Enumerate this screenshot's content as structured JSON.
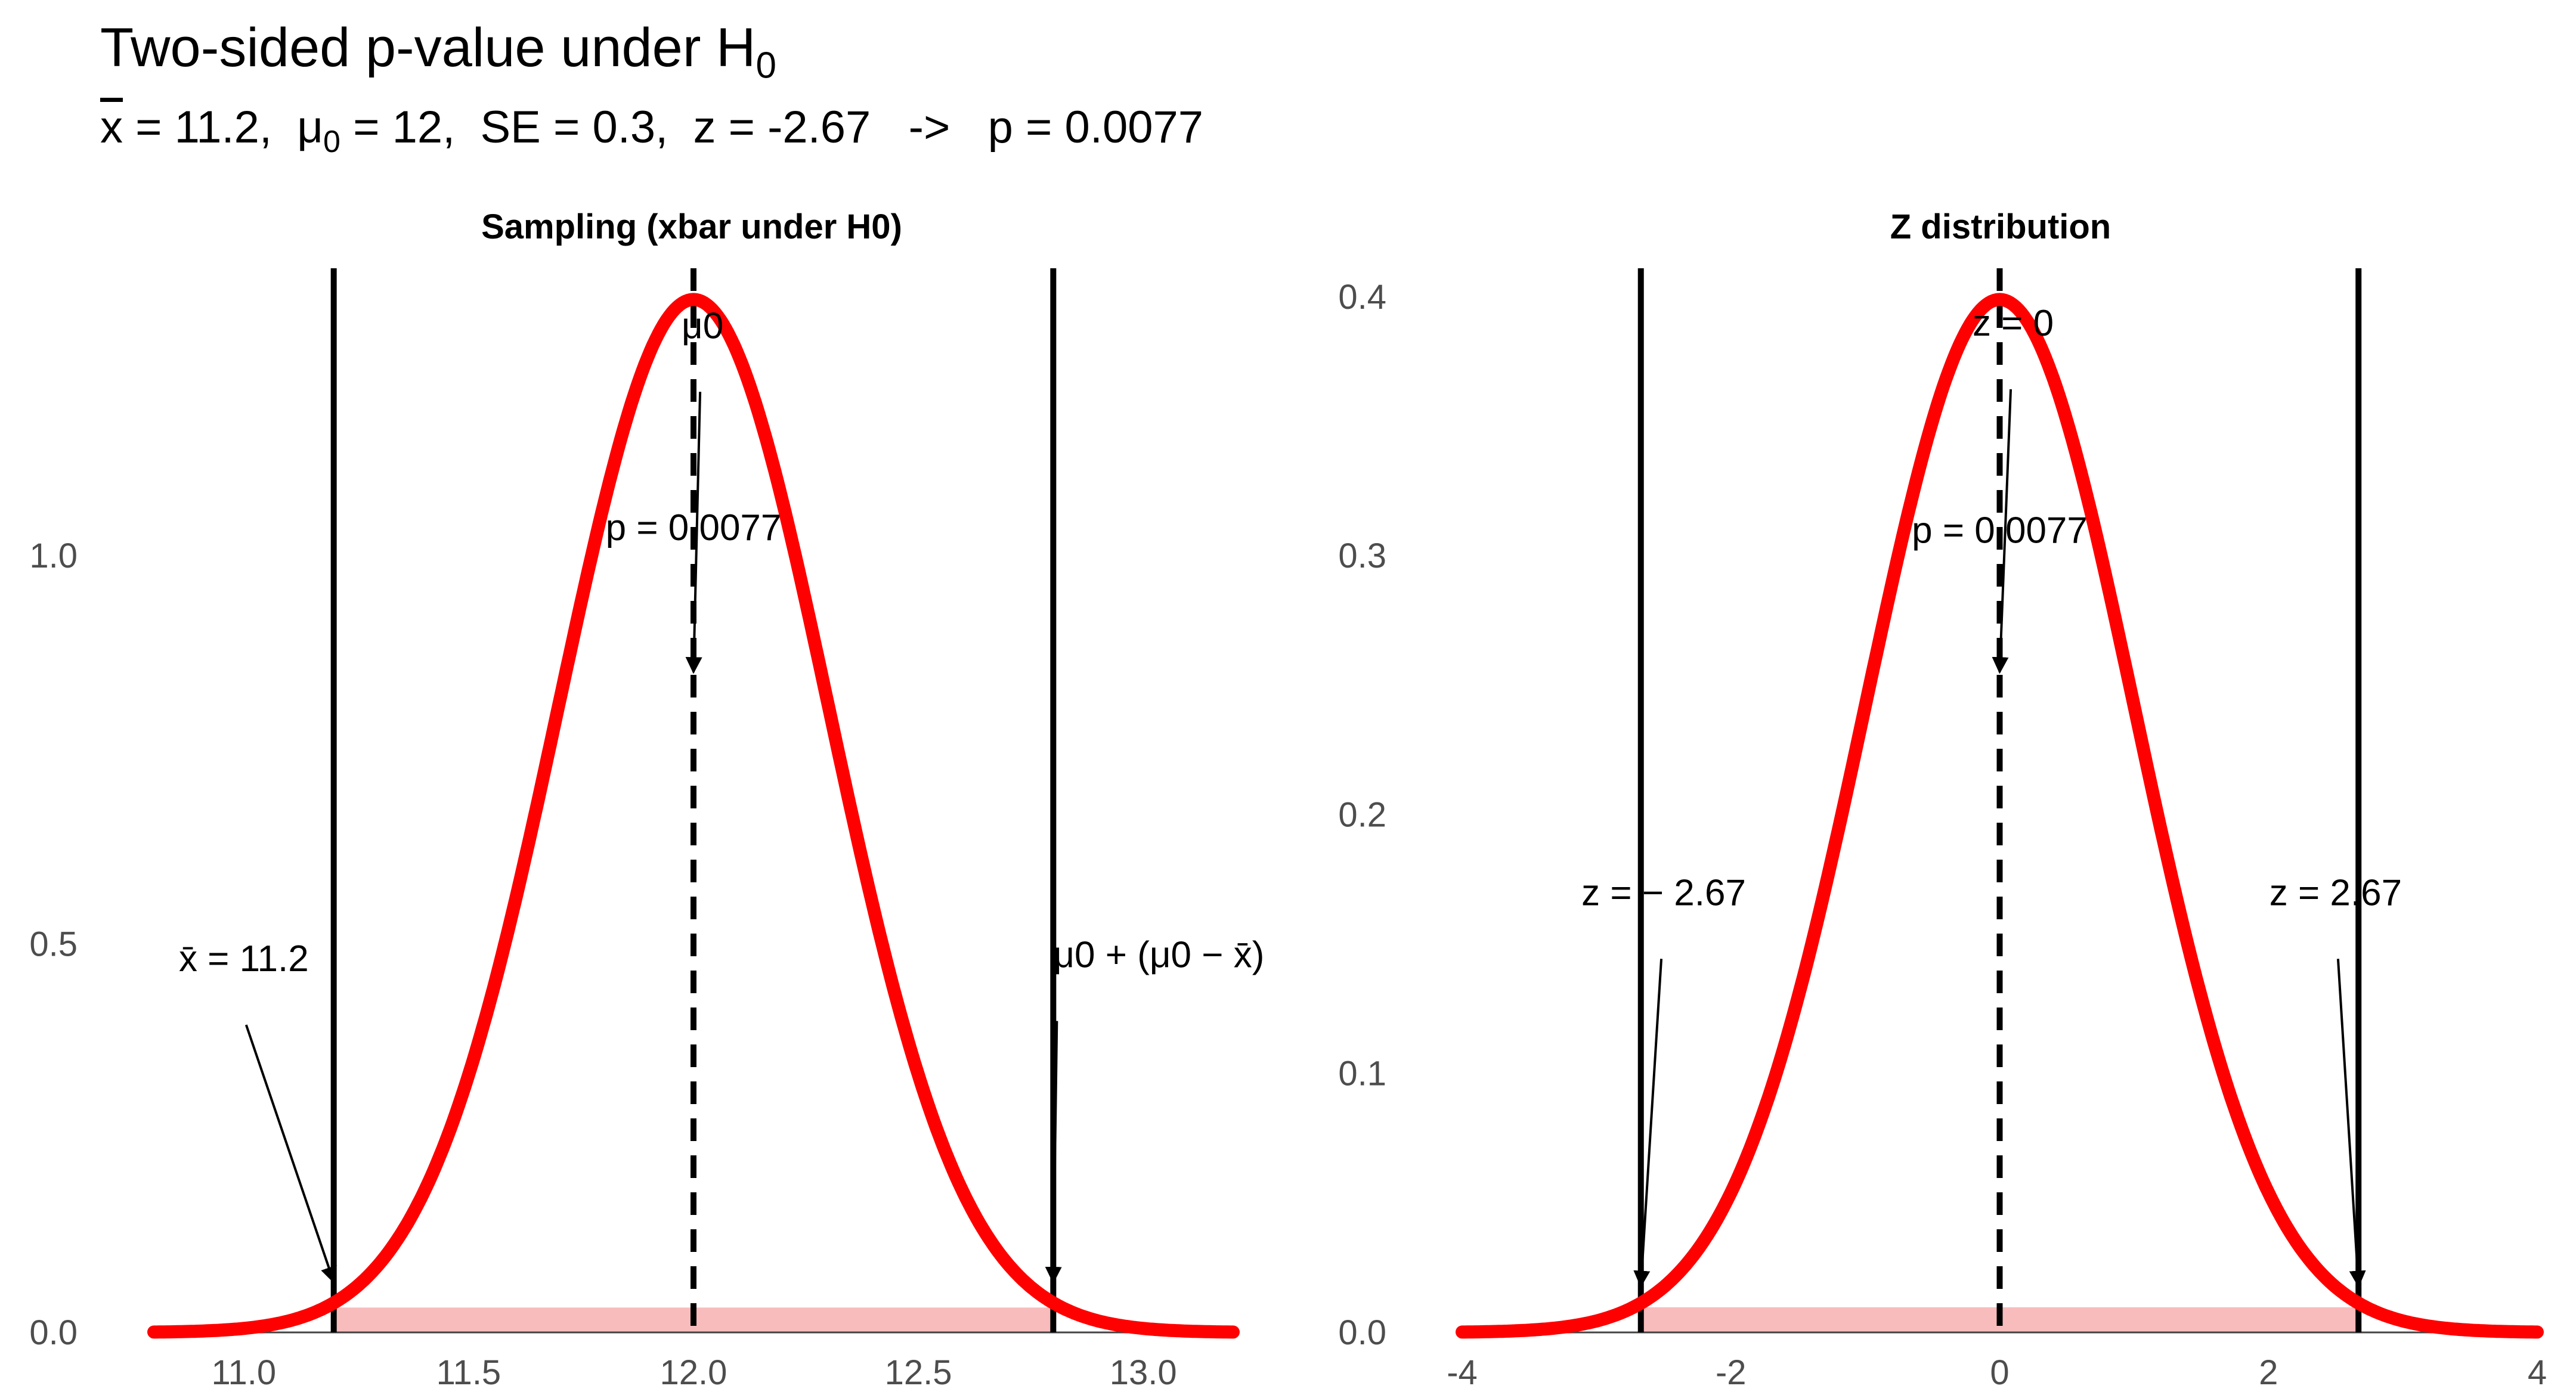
{
  "title": {
    "text": "Two-sided p-value under H",
    "sub": "0"
  },
  "subtitle": {
    "xbar_sym": "x",
    "xbar_val": " = 11.2,  ",
    "mu_sym": "μ",
    "mu_sub": "0",
    "rest": " = 12,  SE = 0.3,  z = -2.67   ->   p = 0.0077"
  },
  "colors": {
    "curve": "#ff0000",
    "shade": "#f8bcbc",
    "line": "#000000",
    "tick": "#4d4d4d"
  },
  "chart_data": [
    {
      "type": "line",
      "title": "Sampling (xbar under H0)",
      "distribution": "normal",
      "mean": 12,
      "sd": 0.3,
      "xlim": [
        10.8,
        13.2
      ],
      "ylim": [
        0,
        1.37
      ],
      "xticks": [
        "11.0",
        "11.5",
        "12.0",
        "12.5",
        "13.0"
      ],
      "xtick_values": [
        11.0,
        11.5,
        12.0,
        12.5,
        13.0
      ],
      "yticks": [
        "0.0",
        "0.5",
        "1.0"
      ],
      "ytick_values": [
        0.0,
        0.5,
        1.0
      ],
      "shaded_range": [
        11.2,
        12.8
      ],
      "shade_height": 0.032,
      "vlines": [
        {
          "x": 11.2,
          "style": "solid"
        },
        {
          "x": 12.0,
          "style": "dashed"
        },
        {
          "x": 12.8,
          "style": "solid"
        }
      ],
      "annotations": [
        {
          "label": "x̄ = 11.2",
          "text_x": 11.0,
          "text_y": 0.465,
          "arrow_to": [
            11.2,
            0.065
          ]
        },
        {
          "label": "μ0 + (μ0 − x̄)",
          "text_x": 12.8,
          "text_y": 0.47,
          "arrow_to": [
            12.8,
            0.065
          ]
        },
        {
          "label": "μ0",
          "text_x": 12.02,
          "text_y": 1.28,
          "arrow_to": [
            12.0,
            0.85
          ]
        },
        {
          "label": "p = 0.0077",
          "text_x": 12.0,
          "text_y": 1.02
        }
      ]
    },
    {
      "type": "line",
      "title": "Z distribution",
      "distribution": "normal",
      "mean": 0,
      "sd": 1,
      "xlim": [
        -4,
        4
      ],
      "ylim": [
        0,
        0.411
      ],
      "xticks": [
        "-4",
        "-2",
        "0",
        "2",
        "4"
      ],
      "xtick_values": [
        -4,
        -2,
        0,
        2,
        4
      ],
      "yticks": [
        "0.0",
        "0.1",
        "0.2",
        "0.3",
        "0.4"
      ],
      "ytick_values": [
        0.0,
        0.1,
        0.2,
        0.3,
        0.4
      ],
      "shaded_range": [
        -2.67,
        2.67
      ],
      "shade_height": 0.0097,
      "vlines": [
        {
          "x": -2.67,
          "style": "solid"
        },
        {
          "x": 0,
          "style": "dashed"
        },
        {
          "x": 2.67,
          "style": "solid"
        }
      ],
      "annotations": [
        {
          "label": "z = − 2.67",
          "text_x": -2.5,
          "text_y": 0.165,
          "arrow_to": [
            -2.67,
            0.018
          ]
        },
        {
          "label": "z = 2.67",
          "text_x": 2.5,
          "text_y": 0.165,
          "arrow_to": [
            2.67,
            0.018
          ]
        },
        {
          "label": "z = 0",
          "text_x": 0.1,
          "text_y": 0.385,
          "arrow_to": [
            0,
            0.255
          ]
        },
        {
          "label": "p = 0.0077",
          "text_x": 0,
          "text_y": 0.305
        }
      ]
    }
  ]
}
